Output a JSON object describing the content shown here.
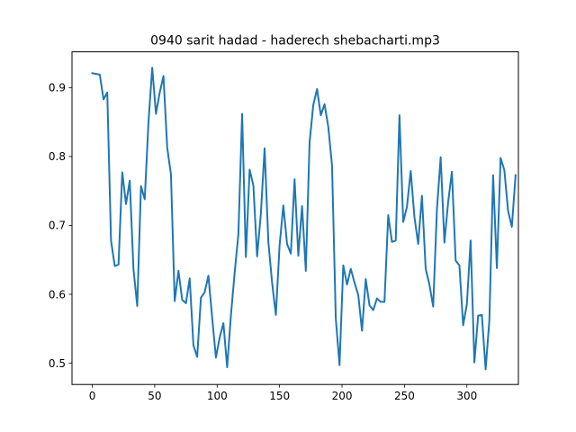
{
  "chart_data": {
    "type": "line",
    "title": "0940 sarit hadad - haderech shebacharti.mp3",
    "xlabel": "",
    "ylabel": "",
    "xlim": [
      -16.25,
      341.25
    ],
    "ylim": [
      0.469,
      0.952
    ],
    "xticks": [
      0,
      50,
      100,
      150,
      200,
      250,
      300
    ],
    "yticks": [
      0.5,
      0.6,
      0.7,
      0.8,
      0.9
    ],
    "grid": false,
    "legend": "none",
    "series": [
      {
        "color": "#1f77b4",
        "points": [
          [
            0,
            0.921
          ],
          [
            3,
            0.92
          ],
          [
            6,
            0.919
          ],
          [
            9,
            0.883
          ],
          [
            12,
            0.893
          ],
          [
            15,
            0.678
          ],
          [
            18,
            0.641
          ],
          [
            21,
            0.643
          ],
          [
            24,
            0.777
          ],
          [
            27,
            0.731
          ],
          [
            30,
            0.765
          ],
          [
            33,
            0.636
          ],
          [
            36,
            0.583
          ],
          [
            39,
            0.757
          ],
          [
            42,
            0.738
          ],
          [
            45,
            0.85
          ],
          [
            48,
            0.929
          ],
          [
            51,
            0.862
          ],
          [
            54,
            0.893
          ],
          [
            57,
            0.917
          ],
          [
            60,
            0.813
          ],
          [
            63,
            0.774
          ],
          [
            66,
            0.59
          ],
          [
            69,
            0.634
          ],
          [
            72,
            0.592
          ],
          [
            75,
            0.587
          ],
          [
            78,
            0.623
          ],
          [
            81,
            0.526
          ],
          [
            84,
            0.509
          ],
          [
            87,
            0.595
          ],
          [
            90,
            0.603
          ],
          [
            93,
            0.627
          ],
          [
            96,
            0.566
          ],
          [
            99,
            0.508
          ],
          [
            102,
            0.537
          ],
          [
            105,
            0.558
          ],
          [
            108,
            0.494
          ],
          [
            111,
            0.569
          ],
          [
            114,
            0.631
          ],
          [
            117,
            0.687
          ],
          [
            120,
            0.862
          ],
          [
            123,
            0.654
          ],
          [
            126,
            0.781
          ],
          [
            129,
            0.758
          ],
          [
            132,
            0.655
          ],
          [
            135,
            0.717
          ],
          [
            138,
            0.812
          ],
          [
            141,
            0.676
          ],
          [
            144,
            0.617
          ],
          [
            147,
            0.57
          ],
          [
            150,
            0.671
          ],
          [
            153,
            0.729
          ],
          [
            156,
            0.673
          ],
          [
            159,
            0.659
          ],
          [
            162,
            0.767
          ],
          [
            165,
            0.656
          ],
          [
            168,
            0.728
          ],
          [
            171,
            0.634
          ],
          [
            174,
            0.82
          ],
          [
            177,
            0.875
          ],
          [
            180,
            0.898
          ],
          [
            183,
            0.86
          ],
          [
            186,
            0.876
          ],
          [
            189,
            0.843
          ],
          [
            192,
            0.787
          ],
          [
            195,
            0.565
          ],
          [
            198,
            0.497
          ],
          [
            201,
            0.642
          ],
          [
            204,
            0.614
          ],
          [
            207,
            0.637
          ],
          [
            210,
            0.617
          ],
          [
            213,
            0.599
          ],
          [
            216,
            0.547
          ],
          [
            219,
            0.622
          ],
          [
            222,
            0.584
          ],
          [
            225,
            0.577
          ],
          [
            228,
            0.594
          ],
          [
            231,
            0.589
          ],
          [
            234,
            0.589
          ],
          [
            237,
            0.715
          ],
          [
            240,
            0.676
          ],
          [
            243,
            0.678
          ],
          [
            246,
            0.86
          ],
          [
            249,
            0.705
          ],
          [
            252,
            0.727
          ],
          [
            255,
            0.779
          ],
          [
            258,
            0.712
          ],
          [
            261,
            0.673
          ],
          [
            264,
            0.743
          ],
          [
            267,
            0.637
          ],
          [
            270,
            0.614
          ],
          [
            273,
            0.582
          ],
          [
            276,
            0.723
          ],
          [
            279,
            0.799
          ],
          [
            282,
            0.675
          ],
          [
            285,
            0.734
          ],
          [
            288,
            0.778
          ],
          [
            291,
            0.649
          ],
          [
            294,
            0.642
          ],
          [
            297,
            0.555
          ],
          [
            300,
            0.586
          ],
          [
            303,
            0.678
          ],
          [
            306,
            0.501
          ],
          [
            309,
            0.569
          ],
          [
            312,
            0.57
          ],
          [
            315,
            0.491
          ],
          [
            318,
            0.562
          ],
          [
            321,
            0.773
          ],
          [
            324,
            0.638
          ],
          [
            327,
            0.798
          ],
          [
            330,
            0.78
          ],
          [
            333,
            0.721
          ],
          [
            336,
            0.698
          ],
          [
            339,
            0.773
          ]
        ]
      }
    ]
  },
  "colors": {
    "line": "#1f77b4",
    "axes": "#000000",
    "background": "#ffffff"
  }
}
